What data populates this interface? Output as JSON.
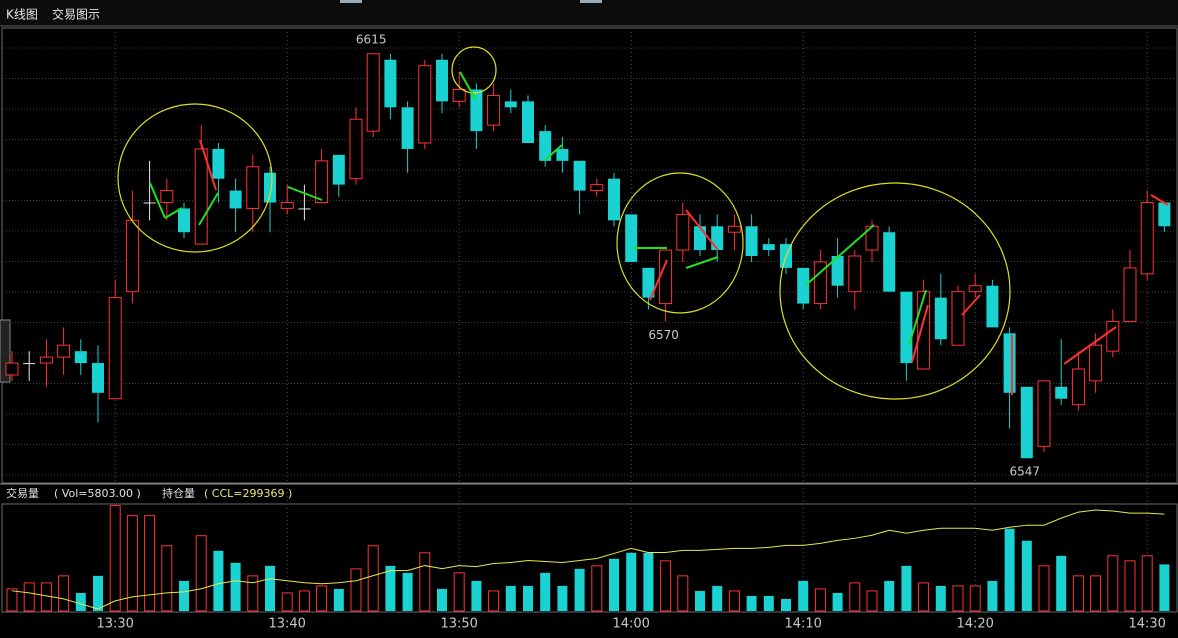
{
  "tabs": [
    "K线图",
    "交易图示"
  ],
  "chart_data": [
    {
      "type": "candlestick",
      "categories": [
        null,
        null,
        null,
        null,
        null,
        null,
        "13:30",
        null,
        null,
        null,
        null,
        null,
        null,
        null,
        null,
        null,
        "13:40",
        null,
        null,
        null,
        null,
        null,
        null,
        null,
        null,
        null,
        "13:50",
        null,
        null,
        null,
        null,
        null,
        null,
        null,
        null,
        null,
        "14:00",
        null,
        null,
        null,
        null,
        null,
        null,
        null,
        null,
        null,
        "14:10",
        null,
        null,
        null,
        null,
        null,
        null,
        null,
        null,
        null,
        "14:20",
        null,
        null,
        null,
        null,
        null,
        null,
        null,
        null,
        null,
        "14:30",
        null
      ],
      "open": [
        6561,
        6563,
        6563,
        6564,
        6565,
        6563,
        6557,
        6575,
        6590,
        6590,
        6589,
        6583,
        6599,
        6592,
        6589,
        6595,
        6589,
        6589,
        6590,
        6598,
        6594,
        6602,
        6614,
        6606,
        6600,
        6614,
        6607,
        6609,
        6603,
        6607,
        6607,
        6602,
        6599,
        6597,
        6592,
        6594,
        6588,
        6579,
        6573,
        6582,
        6586,
        6586,
        6585,
        6586,
        6583,
        6583,
        6579,
        6573,
        6581,
        6575,
        6582,
        6585,
        6575,
        6562,
        6574,
        6566,
        6575,
        6576,
        6568,
        6559,
        6549,
        6559,
        6556,
        6560,
        6565,
        6570,
        6578,
        6590
      ],
      "high": [
        6565,
        6565,
        6567,
        6569,
        6567,
        6566,
        6577,
        6592,
        6597,
        6594,
        6590,
        6603,
        6600,
        6594,
        6598,
        6596,
        6593,
        6593,
        6599,
        6598,
        6606,
        6615,
        6615,
        6607,
        6614,
        6615,
        6612,
        6610,
        6610,
        6609,
        6608,
        6603,
        6601,
        6597,
        6594,
        6595,
        6588,
        6579,
        6582,
        6590,
        6588,
        6588,
        6588,
        6588,
        6584,
        6584,
        6579,
        6582,
        6584,
        6582,
        6587,
        6586,
        6575,
        6577,
        6578,
        6576,
        6578,
        6577,
        6569,
        6559,
        6560,
        6567,
        6565,
        6568,
        6572,
        6582,
        6592,
        6590
      ],
      "low": [
        6560,
        6560,
        6559,
        6561,
        6561,
        6553,
        6557,
        6573,
        6587,
        6587,
        6584,
        6583,
        6590,
        6585,
        6585,
        6585,
        6588,
        6587,
        6590,
        6591,
        6593,
        6601,
        6604,
        6595,
        6599,
        6605,
        6606,
        6599,
        6602,
        6605,
        6600,
        6596,
        6595,
        6588,
        6591,
        6586,
        6580,
        6572,
        6570,
        6580,
        6581,
        6580,
        6582,
        6580,
        6581,
        6578,
        6572,
        6572,
        6574,
        6572,
        6580,
        6575,
        6560,
        6562,
        6566,
        6566,
        6574,
        6569,
        6552,
        6547,
        6548,
        6556,
        6555,
        6558,
        6564,
        6570,
        6577,
        6585
      ],
      "close": [
        6563,
        6563,
        6564,
        6566,
        6563,
        6558,
        6574,
        6587,
        6590,
        6592,
        6585,
        6599,
        6594,
        6589,
        6596,
        6590,
        6590,
        6589,
        6597,
        6593,
        6604,
        6615,
        6606,
        6599,
        6613,
        6607,
        6609,
        6602,
        6608,
        6606,
        6600,
        6597,
        6597,
        6592,
        6593,
        6587,
        6580,
        6574,
        6582,
        6588,
        6582,
        6582,
        6586,
        6581,
        6582,
        6579,
        6573,
        6580,
        6576,
        6581,
        6586,
        6575,
        6563,
        6575,
        6567,
        6575,
        6576,
        6569,
        6558,
        6547,
        6560,
        6557,
        6562,
        6566,
        6570,
        6579,
        6590,
        6586
      ],
      "extreme_labels": [
        6615,
        6570,
        6547
      ],
      "ylim": [
        6543,
        6619
      ],
      "up_color": "#ff3232",
      "down_color": "#1ad2d2",
      "flat_color": "#e8e8e8"
    },
    {
      "type": "bar",
      "title": "交易量",
      "subtitle": "( Vol=5803.00 )",
      "values": [
        2750,
        3500,
        3500,
        4375,
        2250,
        4375,
        13125,
        11875,
        11875,
        8125,
        3750,
        9375,
        7500,
        6000,
        4375,
        5625,
        2250,
        2500,
        3125,
        2750,
        5250,
        8125,
        5625,
        4750,
        7250,
        2750,
        4750,
        3750,
        2500,
        3125,
        3125,
        4750,
        3125,
        5250,
        5625,
        6500,
        7250,
        7250,
        6250,
        4375,
        2500,
        3125,
        2500,
        1875,
        1875,
        1500,
        3750,
        2750,
        2250,
        3500,
        2500,
        3750,
        5625,
        3500,
        3125,
        3125,
        3125,
        3750,
        10250,
        8750,
        5625,
        6875,
        4375,
        4375,
        6875,
        6250,
        6875,
        5803
      ],
      "ylim": [
        0,
        13200
      ]
    },
    {
      "type": "line",
      "title": "持仓量",
      "subtitle": "( CCL=299369 )",
      "color": "#e8e84a",
      "values": [
        297849,
        297809,
        297749,
        297689,
        297589,
        297489,
        297649,
        297729,
        297769,
        297809,
        297829,
        297889,
        297989,
        298049,
        298009,
        298089,
        298049,
        298009,
        297989,
        298009,
        298049,
        298149,
        298249,
        298249,
        298349,
        298289,
        298349,
        298329,
        298389,
        298409,
        298449,
        298429,
        298409,
        298449,
        298489,
        298589,
        298689,
        298609,
        298609,
        298649,
        298649,
        298669,
        298689,
        298689,
        298709,
        298749,
        298749,
        298789,
        298849,
        298889,
        298949,
        299049,
        298989,
        299049,
        299089,
        299089,
        299089,
        299049,
        299109,
        299149,
        299149,
        299289,
        299409,
        299449,
        299429,
        299389,
        299389,
        299369
      ],
      "ylim": [
        297449,
        299549
      ]
    }
  ]
}
